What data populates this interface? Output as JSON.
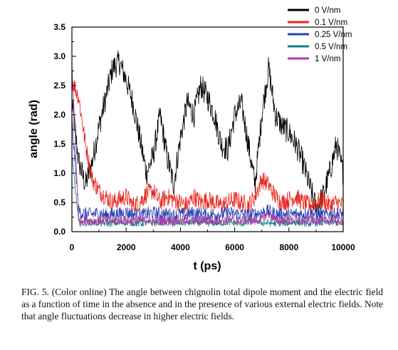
{
  "chart_data": {
    "type": "line",
    "xlabel": "t (ps)",
    "ylabel": "angle (rad)",
    "xlim": [
      0,
      10000
    ],
    "ylim": [
      0,
      3.5
    ],
    "xticks": [
      "0",
      "2000",
      "4000",
      "6000",
      "8000",
      "10000"
    ],
    "yticks": [
      "0.0",
      "0.5",
      "1.0",
      "1.5",
      "2.0",
      "2.5",
      "3.0",
      "3.5"
    ],
    "grid": false,
    "legend_position": "top-right",
    "series": [
      {
        "name": "0 V/nm",
        "color": "#000000",
        "x": [
          0,
          250,
          500,
          750,
          1000,
          1250,
          1500,
          1750,
          2000,
          2250,
          2500,
          2750,
          3000,
          3250,
          3500,
          3750,
          4000,
          4250,
          4500,
          4750,
          5000,
          5250,
          5500,
          5750,
          6000,
          6250,
          6500,
          6750,
          7000,
          7250,
          7500,
          7750,
          8000,
          8250,
          8500,
          8750,
          9000,
          9250,
          9500,
          9750,
          10000
        ],
        "values": [
          2.2,
          1.2,
          0.8,
          1.2,
          1.8,
          2.3,
          2.8,
          2.9,
          2.6,
          2.2,
          1.6,
          1.0,
          1.3,
          2.0,
          1.3,
          0.8,
          1.6,
          2.2,
          2.0,
          2.5,
          2.3,
          2.0,
          1.5,
          1.4,
          2.0,
          2.2,
          1.5,
          0.8,
          2.0,
          2.8,
          2.0,
          1.8,
          1.7,
          1.5,
          1.2,
          0.8,
          0.4,
          0.6,
          1.0,
          1.5,
          1.0
        ]
      },
      {
        "name": "0.1 V/nm",
        "color": "#e8241c",
        "x": [
          0,
          250,
          500,
          750,
          1000,
          1250,
          1500,
          1750,
          2000,
          2250,
          2500,
          2750,
          3000,
          3250,
          3500,
          3750,
          4000,
          4250,
          4500,
          4750,
          5000,
          5250,
          5500,
          5750,
          6000,
          6250,
          6500,
          6750,
          7000,
          7250,
          7500,
          7750,
          8000,
          8250,
          8500,
          8750,
          9000,
          9250,
          9500,
          9750,
          10000
        ],
        "values": [
          2.6,
          2.3,
          1.5,
          0.9,
          0.7,
          0.6,
          0.5,
          0.55,
          0.6,
          0.45,
          0.5,
          0.65,
          0.7,
          0.5,
          0.6,
          0.55,
          0.5,
          0.45,
          0.6,
          0.5,
          0.55,
          0.5,
          0.45,
          0.5,
          0.55,
          0.5,
          0.45,
          0.6,
          0.9,
          0.8,
          0.6,
          0.5,
          0.55,
          0.6,
          0.5,
          0.45,
          0.5,
          0.55,
          0.45,
          0.5,
          0.45
        ]
      },
      {
        "name": "0.25 V/nm",
        "color": "#2a3fb0",
        "x": [
          0,
          250,
          500,
          750,
          1000,
          1250,
          1500,
          1750,
          2000,
          2250,
          2500,
          2750,
          3000,
          3250,
          3500,
          3750,
          4000,
          4250,
          4500,
          4750,
          5000,
          5250,
          5500,
          5750,
          6000,
          6250,
          6500,
          6750,
          7000,
          7250,
          7500,
          7750,
          8000,
          8250,
          8500,
          8750,
          9000,
          9250,
          9500,
          9750,
          10000
        ],
        "values": [
          1.9,
          0.35,
          0.3,
          0.3,
          0.32,
          0.28,
          0.3,
          0.3,
          0.33,
          0.3,
          0.28,
          0.3,
          0.32,
          0.3,
          0.3,
          0.28,
          0.3,
          0.3,
          0.32,
          0.3,
          0.28,
          0.3,
          0.3,
          0.32,
          0.3,
          0.3,
          0.28,
          0.3,
          0.33,
          0.35,
          0.3,
          0.3,
          0.28,
          0.3,
          0.3,
          0.32,
          0.3,
          0.28,
          0.3,
          0.3,
          0.3
        ]
      },
      {
        "name": "0.5 V/nm",
        "color": "#0f8080",
        "x": [
          0,
          250,
          500,
          750,
          1000,
          1250,
          1500,
          1750,
          2000,
          2250,
          2500,
          2750,
          3000,
          3250,
          3500,
          3750,
          4000,
          4250,
          4500,
          4750,
          5000,
          5250,
          5500,
          5750,
          6000,
          6250,
          6500,
          6750,
          7000,
          7250,
          7500,
          7750,
          8000,
          8250,
          8500,
          8750,
          9000,
          9250,
          9500,
          9750,
          10000
        ],
        "values": [
          1.3,
          0.15,
          0.15,
          0.16,
          0.15,
          0.14,
          0.15,
          0.15,
          0.16,
          0.15,
          0.14,
          0.15,
          0.15,
          0.16,
          0.15,
          0.14,
          0.15,
          0.15,
          0.16,
          0.15,
          0.14,
          0.15,
          0.15,
          0.16,
          0.15,
          0.14,
          0.15,
          0.2,
          0.15,
          0.15,
          0.14,
          0.15,
          0.15,
          0.16,
          0.15,
          0.14,
          0.15,
          0.15,
          0.16,
          0.15,
          0.15
        ]
      },
      {
        "name": "1 V/nm",
        "color": "#b23aa8",
        "x": [
          0,
          250,
          500,
          750,
          1000,
          1250,
          1500,
          1750,
          2000,
          2250,
          2500,
          2750,
          3000,
          3250,
          3500,
          3750,
          4000,
          4250,
          4500,
          4750,
          5000,
          5250,
          5500,
          5750,
          6000,
          6250,
          6500,
          6750,
          7000,
          7250,
          7500,
          7750,
          8000,
          8250,
          8500,
          8750,
          9000,
          9250,
          9500,
          9750,
          10000
        ],
        "values": [
          2.9,
          0.18,
          0.2,
          0.18,
          0.19,
          0.2,
          0.18,
          0.19,
          0.2,
          0.18,
          0.19,
          0.2,
          0.18,
          0.19,
          0.2,
          0.18,
          0.19,
          0.2,
          0.18,
          0.19,
          0.2,
          0.18,
          0.19,
          0.2,
          0.18,
          0.19,
          0.2,
          0.18,
          0.22,
          0.3,
          0.2,
          0.18,
          0.19,
          0.2,
          0.18,
          0.19,
          0.2,
          0.18,
          0.19,
          0.2,
          0.18
        ]
      }
    ]
  },
  "caption": "FIG. 5. (Color online) The angle between chignolin total dipole moment and the electric field as a function of time in the absence and in the presence of various external electric fields. Note that angle fluctuations decrease in higher electric fields."
}
